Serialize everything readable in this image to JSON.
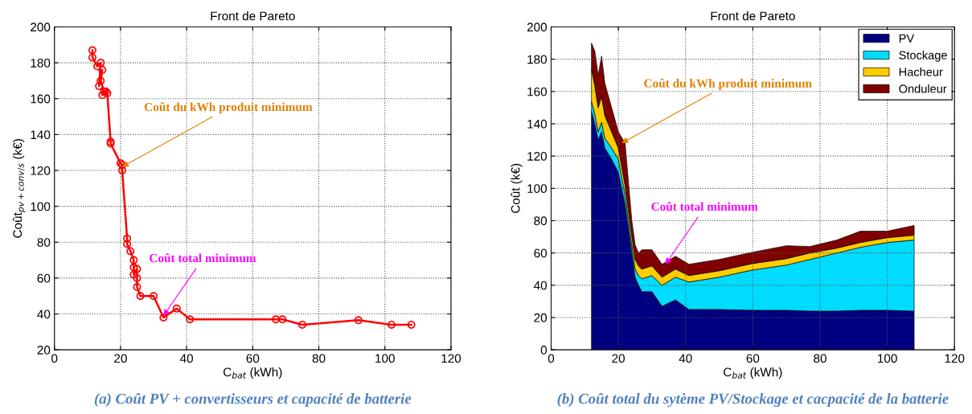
{
  "chart_data": [
    {
      "type": "line",
      "title": "Front de Pareto",
      "xlabel": "C$_{bat}$ (kWh)",
      "ylabel": "Coût$_{pv+conv/s}$ (k€)",
      "x": [
        11.5,
        11.5,
        13,
        14,
        13.5,
        14.5,
        14,
        15,
        14.5,
        15.5,
        16,
        17,
        17,
        20,
        20.5,
        20.5,
        22,
        22,
        23,
        24,
        24,
        24,
        25,
        25,
        25,
        26,
        30,
        33,
        37,
        41,
        67,
        69,
        75,
        92,
        102,
        108
      ],
      "series": [
        {
          "color": "#ff0000",
          "values": [
            187,
            183,
            178,
            180,
            167,
            176,
            170,
            164,
            162,
            164,
            163,
            136,
            135,
            124,
            123,
            120,
            82,
            79,
            75,
            70,
            66,
            62,
            65,
            60,
            55,
            50,
            50,
            38,
            43,
            37,
            37,
            37,
            34,
            36.5,
            34,
            34
          ]
        }
      ],
      "xlim": [
        0,
        120
      ],
      "xticks": [
        0,
        20,
        40,
        60,
        80,
        100,
        120
      ],
      "ylim": [
        20,
        200
      ],
      "yticks": [
        20,
        40,
        60,
        80,
        100,
        120,
        140,
        160,
        180,
        200
      ],
      "grid": true,
      "marker": "circle",
      "line_style": "solid",
      "legend": false,
      "annotations": [
        {
          "text": "Coût du kWh produit minimum",
          "x": 20.5,
          "y": 122
        },
        {
          "text": "Coût total minimum",
          "x": 33,
          "y": 39
        },
        "(a) Coût PV + convertisseurs et capacité de batterie"
      ]
    },
    {
      "type": "area",
      "stacked": true,
      "title": "Front de Pareto",
      "xlabel": "C$_{bat}$ (kWh)",
      "ylabel": "Coût (k€)",
      "x": [
        12,
        13,
        14,
        15,
        16,
        18,
        20,
        22,
        24,
        25,
        26,
        27,
        30,
        33,
        37,
        41,
        50,
        60,
        70,
        77,
        85,
        92,
        100,
        108
      ],
      "series": [
        {
          "name": "PV",
          "color": "#000080",
          "values": [
            148,
            140,
            130,
            135,
            125,
            118,
            110,
            90,
            60,
            45,
            40,
            36,
            36,
            27,
            31,
            25,
            25,
            24.5,
            24.5,
            24,
            24,
            24.5,
            24.5,
            24
          ]
        },
        {
          "name": "Stockage",
          "color": "#00dcff",
          "values": [
            6,
            6,
            5,
            6,
            6,
            7,
            8,
            6,
            5,
            5,
            6,
            8,
            10,
            13,
            14,
            17,
            20,
            25,
            28,
            32,
            36,
            39,
            42,
            44
          ]
        },
        {
          "name": "Hacheur",
          "color": "#ffcc00",
          "values": [
            20,
            18,
            15,
            16,
            14,
            10,
            7,
            6,
            6,
            6,
            6,
            6,
            6,
            5,
            5,
            4,
            4,
            4,
            4,
            4,
            3,
            3,
            3,
            3
          ]
        },
        {
          "name": "Onduleur",
          "color": "#800000",
          "values": [
            16,
            21,
            20,
            25,
            20,
            15,
            10,
            26,
            9,
            9,
            8,
            12,
            10,
            8,
            8,
            7,
            7,
            7,
            8,
            4,
            5,
            7,
            4,
            6
          ]
        }
      ],
      "xlim": [
        0,
        120
      ],
      "xticks": [
        0,
        20,
        40,
        60,
        80,
        100,
        120
      ],
      "ylim": [
        0,
        200
      ],
      "yticks": [
        0,
        20,
        40,
        60,
        80,
        100,
        120,
        140,
        160,
        180,
        200
      ],
      "grid": true,
      "legend": "top right",
      "annotations": [
        {
          "text": "Coût du kWh produit minimum",
          "x": 21,
          "y": 128
        },
        {
          "text": "Coût total minimum",
          "x": 34,
          "y": 53
        },
        "(b) Coût total du sytème PV/Stockage et cacpacité de la batterie"
      ]
    }
  ]
}
